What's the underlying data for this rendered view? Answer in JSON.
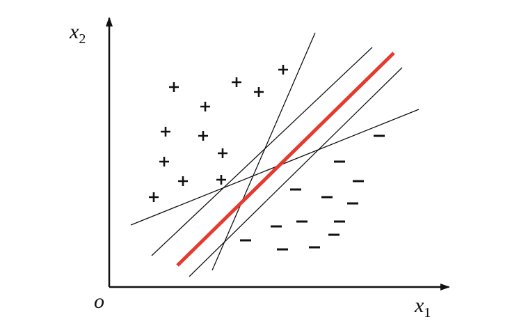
{
  "axes": {
    "y_label": {
      "text": "x",
      "subscript": "2"
    },
    "x_label": {
      "text": "x",
      "subscript": "1"
    },
    "origin": "o"
  }
}
